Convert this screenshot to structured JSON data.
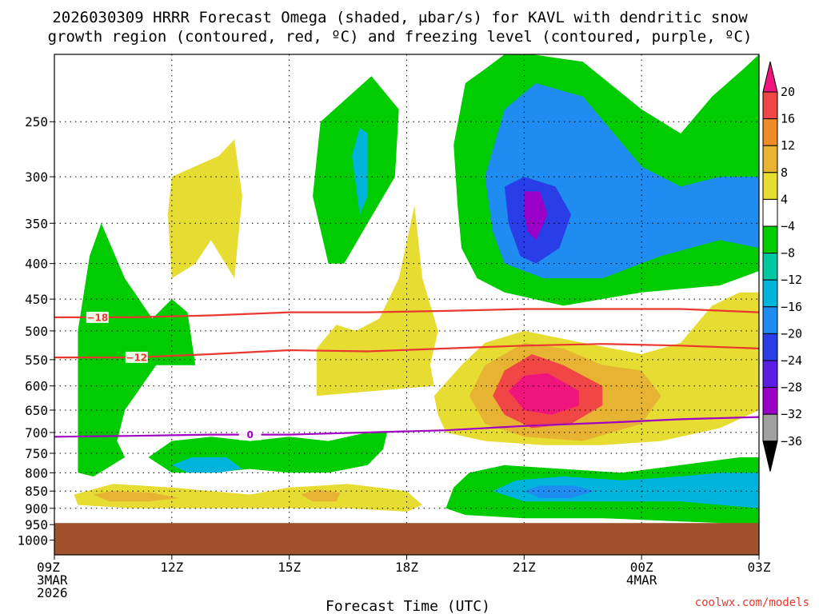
{
  "title_line1": "2026030309 HRRR Forecast Omega (shaded, μbar/s) for KAVL with dendritic snow",
  "title_line2": "growth region (contoured, red, ºC) and freezing level (contoured, purple, ºC)",
  "credit": "coolwx.com/models",
  "chart_data": {
    "type": "heatmap",
    "xlabel": "Forecast Time (UTC)",
    "x_ticks": [
      {
        "hour": 0,
        "lines": [
          "09Z",
          "3MAR",
          "2026"
        ]
      },
      {
        "hour": 3,
        "lines": [
          "12Z"
        ]
      },
      {
        "hour": 6,
        "lines": [
          "15Z"
        ]
      },
      {
        "hour": 9,
        "lines": [
          "18Z"
        ]
      },
      {
        "hour": 12,
        "lines": [
          "21Z"
        ]
      },
      {
        "hour": 15,
        "lines": [
          "00Z",
          "4MAR"
        ]
      },
      {
        "hour": 18,
        "lines": [
          "03Z"
        ]
      }
    ],
    "xlim": [
      0,
      18
    ],
    "ylabel": "",
    "y_scale": "log",
    "ylim": [
      1050,
      200
    ],
    "y_ticks": [
      250,
      300,
      350,
      400,
      450,
      500,
      550,
      600,
      650,
      700,
      750,
      800,
      850,
      900,
      950,
      1000
    ],
    "grid": true,
    "ground_level_hPa": 945,
    "ground_color": "#a0522d",
    "colorbar": {
      "levels": [
        -36,
        -32,
        -28,
        -24,
        -20,
        -16,
        -12,
        -8,
        -4,
        4,
        8,
        12,
        16,
        20
      ],
      "labels": [
        "20",
        "16",
        "12",
        "8",
        "4",
        "−4",
        "−8",
        "−12",
        "−16",
        "−20",
        "−24",
        "−28",
        "−32",
        "−36"
      ],
      "colors": [
        "#000000",
        "#a0a0a0",
        "#9a00c8",
        "#5a1ee6",
        "#2a3ee8",
        "#1e8cf0",
        "#00b4dc",
        "#00c8a0",
        "#00cc00",
        "#ffffff",
        "#e6dc32",
        "#e6b432",
        "#f08c28",
        "#f04646",
        "#f0147d"
      ]
    },
    "omega_cells": [
      {
        "name": "green-upper-left",
        "level": -4,
        "points": [
          [
            2.5,
            480
          ],
          [
            3.0,
            450
          ],
          [
            3.4,
            470
          ],
          [
            3.6,
            560
          ],
          [
            2.6,
            560
          ],
          [
            1.8,
            650
          ],
          [
            1.6,
            720
          ],
          [
            1.8,
            760
          ],
          [
            1.0,
            810
          ],
          [
            0.6,
            800
          ],
          [
            0.6,
            700
          ],
          [
            0.6,
            500
          ],
          [
            0.9,
            390
          ],
          [
            1.2,
            350
          ],
          [
            1.8,
            420
          ]
        ]
      },
      {
        "name": "yellow-upper-left",
        "level": 4,
        "points": [
          [
            3.0,
            420
          ],
          [
            2.9,
            340
          ],
          [
            3.0,
            300
          ],
          [
            4.2,
            280
          ],
          [
            4.6,
            265
          ],
          [
            4.8,
            320
          ],
          [
            4.6,
            420
          ],
          [
            4.0,
            370
          ],
          [
            3.6,
            400
          ]
        ]
      },
      {
        "name": "green-upper-mid",
        "level": -4,
        "points": [
          [
            7.0,
            400
          ],
          [
            6.6,
            320
          ],
          [
            6.8,
            250
          ],
          [
            8.1,
            215
          ],
          [
            8.8,
            240
          ],
          [
            8.7,
            300
          ],
          [
            8.0,
            350
          ],
          [
            7.4,
            400
          ]
        ]
      },
      {
        "name": "teal-upper-mid",
        "level": -12,
        "points": [
          [
            7.8,
            340
          ],
          [
            7.6,
            280
          ],
          [
            7.8,
            255
          ],
          [
            8.0,
            260
          ],
          [
            8.0,
            320
          ]
        ]
      },
      {
        "name": "yellow-18z-column",
        "level": 4,
        "points": [
          [
            8.3,
            480
          ],
          [
            8.8,
            420
          ],
          [
            9.2,
            330
          ],
          [
            9.4,
            420
          ],
          [
            9.8,
            500
          ],
          [
            9.6,
            560
          ],
          [
            9.7,
            600
          ],
          [
            6.7,
            620
          ],
          [
            6.7,
            530
          ],
          [
            7.2,
            490
          ],
          [
            7.7,
            500
          ]
        ]
      },
      {
        "name": "green-upper-right",
        "level": -4,
        "points": [
          [
            10.2,
            270
          ],
          [
            10.5,
            220
          ],
          [
            11.0,
            210
          ],
          [
            11.5,
            200
          ],
          [
            12.2,
            200
          ],
          [
            13.5,
            205
          ],
          [
            15.0,
            240
          ],
          [
            16.0,
            260
          ],
          [
            16.8,
            230
          ],
          [
            17.6,
            210
          ],
          [
            18,
            200
          ],
          [
            18,
            410
          ],
          [
            17.0,
            430
          ],
          [
            15.0,
            440
          ],
          [
            13.0,
            460
          ],
          [
            11.5,
            440
          ],
          [
            10.8,
            420
          ],
          [
            10.4,
            380
          ],
          [
            10.3,
            330
          ]
        ]
      },
      {
        "name": "blue-upper-right",
        "level": -16,
        "points": [
          [
            11.2,
            360
          ],
          [
            11.0,
            300
          ],
          [
            11.5,
            240
          ],
          [
            12.3,
            220
          ],
          [
            13.5,
            230
          ],
          [
            15.0,
            290
          ],
          [
            16.0,
            310
          ],
          [
            17.0,
            300
          ],
          [
            18,
            300
          ],
          [
            18,
            380
          ],
          [
            17.0,
            370
          ],
          [
            15.5,
            390
          ],
          [
            14.0,
            420
          ],
          [
            12.5,
            420
          ],
          [
            11.5,
            400
          ]
        ]
      },
      {
        "name": "navy-core",
        "level": -20,
        "points": [
          [
            11.6,
            350
          ],
          [
            11.5,
            310
          ],
          [
            12.0,
            300
          ],
          [
            12.8,
            310
          ],
          [
            13.2,
            340
          ],
          [
            12.9,
            380
          ],
          [
            12.3,
            400
          ],
          [
            11.9,
            390
          ]
        ]
      },
      {
        "name": "purple-core",
        "level": -28,
        "points": [
          [
            12.0,
            340
          ],
          [
            12.0,
            315
          ],
          [
            12.4,
            315
          ],
          [
            12.6,
            340
          ],
          [
            12.3,
            370
          ],
          [
            12.1,
            360
          ]
        ]
      },
      {
        "name": "yellow-mid-right",
        "level": 4,
        "points": [
          [
            9.7,
            620
          ],
          [
            10.4,
            560
          ],
          [
            11.0,
            520
          ],
          [
            12.0,
            500
          ],
          [
            13.5,
            520
          ],
          [
            15.0,
            540
          ],
          [
            16.0,
            520
          ],
          [
            16.8,
            460
          ],
          [
            17.5,
            440
          ],
          [
            18,
            440
          ],
          [
            18,
            650
          ],
          [
            17.0,
            690
          ],
          [
            15.5,
            720
          ],
          [
            14.0,
            730
          ],
          [
            12.5,
            730
          ],
          [
            11.0,
            720
          ],
          [
            10.0,
            700
          ],
          [
            9.8,
            660
          ]
        ]
      },
      {
        "name": "orange-mid-right",
        "level": 8,
        "points": [
          [
            10.6,
            620
          ],
          [
            11.0,
            560
          ],
          [
            12.0,
            520
          ],
          [
            13.0,
            530
          ],
          [
            14.0,
            560
          ],
          [
            15.0,
            570
          ],
          [
            15.5,
            620
          ],
          [
            15.0,
            680
          ],
          [
            13.5,
            720
          ],
          [
            12.0,
            710
          ],
          [
            11.0,
            680
          ]
        ]
      },
      {
        "name": "red-mid-right",
        "level": 16,
        "points": [
          [
            11.2,
            620
          ],
          [
            11.5,
            570
          ],
          [
            12.2,
            540
          ],
          [
            13.0,
            560
          ],
          [
            14.0,
            600
          ],
          [
            14.0,
            640
          ],
          [
            13.2,
            680
          ],
          [
            12.2,
            690
          ],
          [
            11.5,
            660
          ]
        ]
      },
      {
        "name": "magenta-core",
        "level": 20,
        "points": [
          [
            11.6,
            610
          ],
          [
            12.0,
            580
          ],
          [
            12.6,
            575
          ],
          [
            13.4,
            610
          ],
          [
            13.4,
            640
          ],
          [
            12.7,
            660
          ],
          [
            12.0,
            650
          ]
        ]
      },
      {
        "name": "green-low-left",
        "level": -4,
        "points": [
          [
            2.4,
            760
          ],
          [
            3.0,
            720
          ],
          [
            4.0,
            710
          ],
          [
            5.0,
            720
          ],
          [
            6.0,
            710
          ],
          [
            7.0,
            720
          ],
          [
            8.0,
            700
          ],
          [
            8.5,
            700
          ],
          [
            8.4,
            740
          ],
          [
            8.0,
            780
          ],
          [
            7.0,
            800
          ],
          [
            6.0,
            800
          ],
          [
            5.0,
            790
          ],
          [
            4.0,
            800
          ],
          [
            3.0,
            800
          ]
        ]
      },
      {
        "name": "teal-low-left",
        "level": -12,
        "points": [
          [
            3.0,
            780
          ],
          [
            3.5,
            760
          ],
          [
            4.4,
            760
          ],
          [
            4.8,
            790
          ],
          [
            4.2,
            800
          ],
          [
            3.4,
            800
          ]
        ]
      },
      {
        "name": "green-low-right",
        "level": -4,
        "points": [
          [
            10.2,
            840
          ],
          [
            10.6,
            800
          ],
          [
            11.5,
            780
          ],
          [
            13.0,
            790
          ],
          [
            14.5,
            800
          ],
          [
            16.0,
            780
          ],
          [
            17.5,
            760
          ],
          [
            18,
            760
          ],
          [
            18,
            950
          ],
          [
            16.0,
            940
          ],
          [
            14.0,
            930
          ],
          [
            12.0,
            930
          ],
          [
            10.5,
            920
          ],
          [
            10.0,
            900
          ]
        ]
      },
      {
        "name": "teal-low-right",
        "level": -12,
        "points": [
          [
            11.2,
            850
          ],
          [
            11.8,
            820
          ],
          [
            13.0,
            810
          ],
          [
            14.5,
            820
          ],
          [
            16.0,
            810
          ],
          [
            17.0,
            800
          ],
          [
            18,
            800
          ],
          [
            18,
            900
          ],
          [
            16.0,
            880
          ],
          [
            14.0,
            880
          ],
          [
            12.0,
            880
          ]
        ]
      },
      {
        "name": "blue-low-right",
        "level": -16,
        "points": [
          [
            12.0,
            850
          ],
          [
            12.4,
            835
          ],
          [
            13.3,
            835
          ],
          [
            13.8,
            850
          ],
          [
            13.2,
            870
          ],
          [
            12.4,
            870
          ]
        ]
      },
      {
        "name": "yellow-low-band",
        "level": 4,
        "points": [
          [
            0.5,
            860
          ],
          [
            1.5,
            830
          ],
          [
            3.0,
            840
          ],
          [
            5.0,
            860
          ],
          [
            6.0,
            840
          ],
          [
            7.5,
            830
          ],
          [
            9.0,
            850
          ],
          [
            9.4,
            890
          ],
          [
            9.0,
            910
          ],
          [
            7.5,
            900
          ],
          [
            6.0,
            900
          ],
          [
            4.0,
            900
          ],
          [
            2.0,
            900
          ],
          [
            0.6,
            890
          ]
        ]
      },
      {
        "name": "orange-low-1",
        "level": 8,
        "points": [
          [
            1.0,
            860
          ],
          [
            1.5,
            850
          ],
          [
            2.5,
            855
          ],
          [
            3.2,
            870
          ],
          [
            2.4,
            880
          ],
          [
            1.4,
            880
          ]
        ]
      },
      {
        "name": "orange-low-2",
        "level": 8,
        "points": [
          [
            6.3,
            860
          ],
          [
            6.7,
            845
          ],
          [
            7.3,
            855
          ],
          [
            7.2,
            880
          ],
          [
            6.6,
            880
          ]
        ]
      }
    ],
    "dgz_contours": [
      {
        "value": -18,
        "label": "−18",
        "color": "#e8382f",
        "label_at": 1.1,
        "points": [
          [
            0,
            478
          ],
          [
            2,
            478
          ],
          [
            4,
            475
          ],
          [
            6,
            470
          ],
          [
            8,
            470
          ],
          [
            10,
            468
          ],
          [
            12,
            465
          ],
          [
            14,
            465
          ],
          [
            16,
            465
          ],
          [
            18,
            470
          ]
        ]
      },
      {
        "value": -12,
        "label": "−12",
        "color": "#e8382f",
        "label_at": 2.1,
        "points": [
          [
            0,
            546
          ],
          [
            2,
            546
          ],
          [
            4,
            540
          ],
          [
            6,
            533
          ],
          [
            8,
            535
          ],
          [
            10,
            530
          ],
          [
            12,
            525
          ],
          [
            14,
            522
          ],
          [
            16,
            525
          ],
          [
            18,
            530
          ]
        ]
      }
    ],
    "freezing_level": {
      "value": 0,
      "label": "0",
      "color": "#a000c0",
      "label_at": 5.0,
      "points": [
        [
          0,
          710
        ],
        [
          2,
          708
        ],
        [
          4,
          705
        ],
        [
          6,
          705
        ],
        [
          8,
          700
        ],
        [
          10,
          695
        ],
        [
          12,
          685
        ],
        [
          14,
          678
        ],
        [
          16,
          670
        ],
        [
          18,
          665
        ]
      ]
    }
  }
}
